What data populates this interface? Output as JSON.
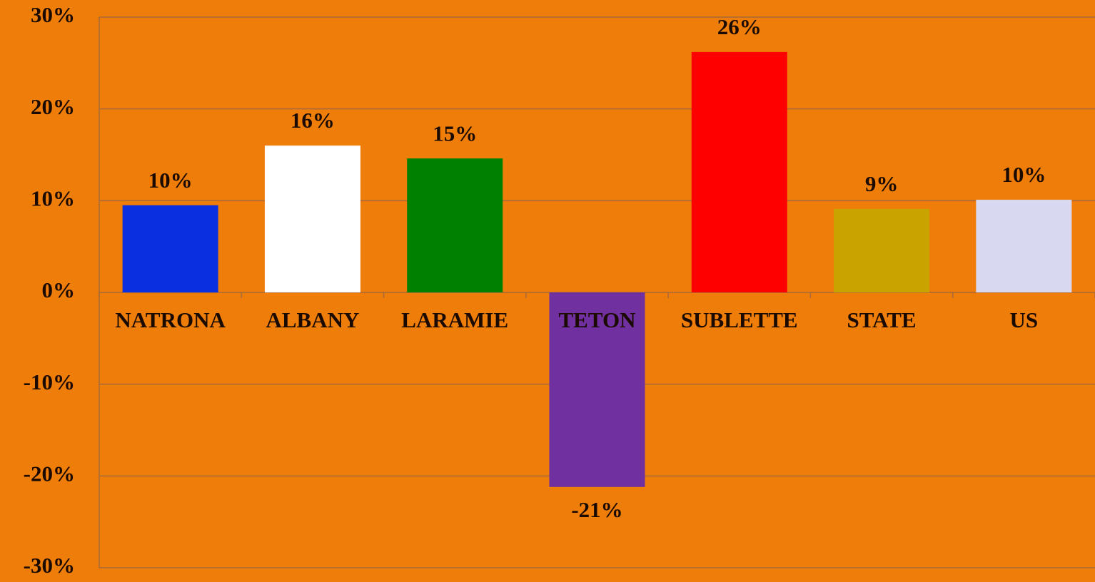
{
  "chart_data": {
    "type": "bar",
    "categories": [
      "NATRONA",
      "ALBANY",
      "LARAMIE",
      "TETON",
      "SUBLETTE",
      "STATE",
      "US"
    ],
    "values": [
      9.5,
      16,
      14.6,
      -21.2,
      26.2,
      9.1,
      10.1
    ],
    "value_labels": [
      "10%",
      "16%",
      "15%",
      "-21%",
      "26%",
      "9%",
      "10%"
    ],
    "colors": [
      "#0a2fe0",
      "#ffffff",
      "#008000",
      "#7030a0",
      "#ff0000",
      "#c9a400",
      "#d8d8f0"
    ],
    "ylim": [
      -30,
      30
    ],
    "yticks": [
      {
        "value": -30,
        "label": "-30%"
      },
      {
        "value": -20,
        "label": "-20%"
      },
      {
        "value": -10,
        "label": "-10%"
      },
      {
        "value": 0,
        "label": "0%"
      },
      {
        "value": 10,
        "label": "10%"
      },
      {
        "value": 20,
        "label": "20%"
      },
      {
        "value": 30,
        "label": "30%"
      }
    ],
    "grid": true
  }
}
